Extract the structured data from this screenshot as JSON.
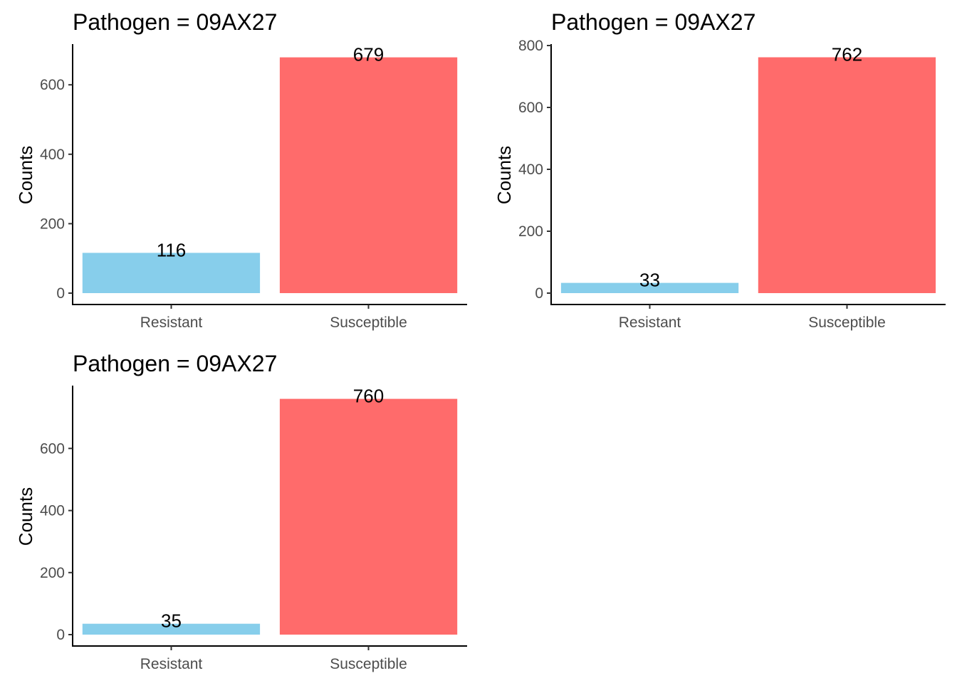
{
  "chart_data": [
    {
      "type": "bar",
      "title": "Pathogen = 09AX27",
      "xlabel": "",
      "ylabel": "Counts",
      "categories": [
        "Resistant",
        "Susceptible"
      ],
      "values": [
        116,
        679
      ],
      "data_labels": [
        "116",
        "679"
      ],
      "bar_colors": [
        "#87CEEB",
        "#FF6B6B"
      ],
      "ylim": [
        0,
        713
      ],
      "yticks": [
        0,
        200,
        400,
        600
      ],
      "grid": false,
      "legend": "none"
    },
    {
      "type": "bar",
      "title": "Pathogen = 09AX27",
      "xlabel": "",
      "ylabel": "Counts",
      "categories": [
        "Resistant",
        "Susceptible"
      ],
      "values": [
        33,
        762
      ],
      "data_labels": [
        "33",
        "762"
      ],
      "bar_colors": [
        "#87CEEB",
        "#FF6B6B"
      ],
      "ylim": [
        0,
        800
      ],
      "yticks": [
        0,
        200,
        400,
        600,
        800
      ],
      "grid": false,
      "legend": "none"
    },
    {
      "type": "bar",
      "title": "Pathogen = 09AX27",
      "xlabel": "",
      "ylabel": "Counts",
      "categories": [
        "Resistant",
        "Susceptible"
      ],
      "values": [
        35,
        760
      ],
      "data_labels": [
        "35",
        "760"
      ],
      "bar_colors": [
        "#87CEEB",
        "#FF6B6B"
      ],
      "ylim": [
        0,
        798
      ],
      "yticks": [
        0,
        200,
        400,
        600
      ],
      "grid": false,
      "legend": "none"
    }
  ]
}
